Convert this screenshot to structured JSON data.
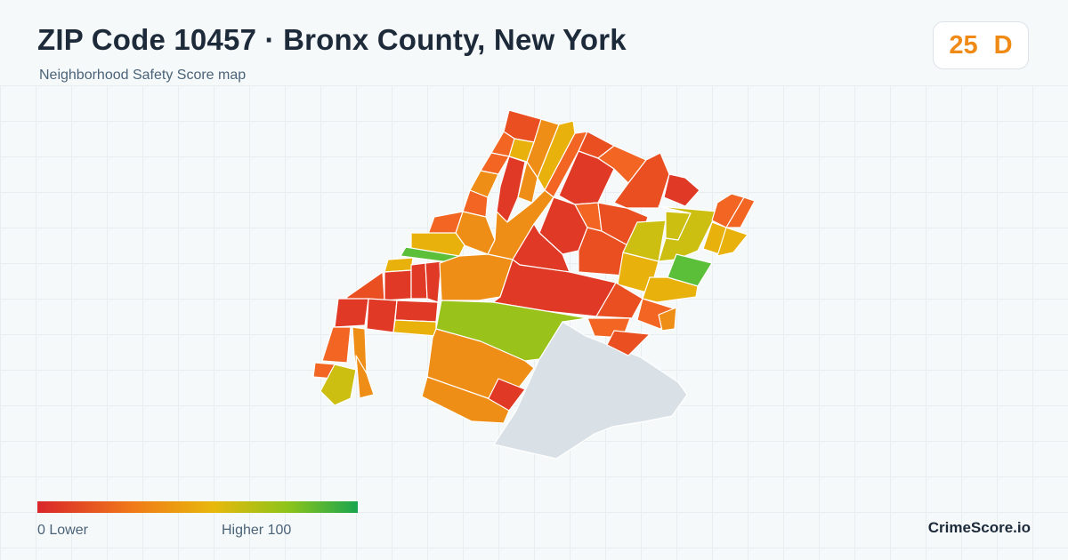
{
  "header": {
    "title": "ZIP Code 10457 · Bronx County, New York",
    "subtitle": "Neighborhood Safety Score map"
  },
  "score": {
    "value": "25",
    "grade": "D",
    "color": "#f08a16"
  },
  "legend": {
    "low_label": "0  Lower",
    "high_label": "Higher  100",
    "min": 0,
    "max": 100,
    "colors": [
      "#d9262b",
      "#f07a18",
      "#e8b80c",
      "#8ec41a",
      "#1aa54e"
    ]
  },
  "brand": "CrimeScore.io",
  "map": {
    "colors": {
      "red": "#e03a26",
      "red_orange": "#ea4f22",
      "orange": "#f26522",
      "amber": "#ef8e16",
      "gold": "#e9b10c",
      "yellow_green": "#cdbf12",
      "lime": "#99c21a",
      "green": "#5cbf3a",
      "park": "#d9e1e7"
    }
  }
}
